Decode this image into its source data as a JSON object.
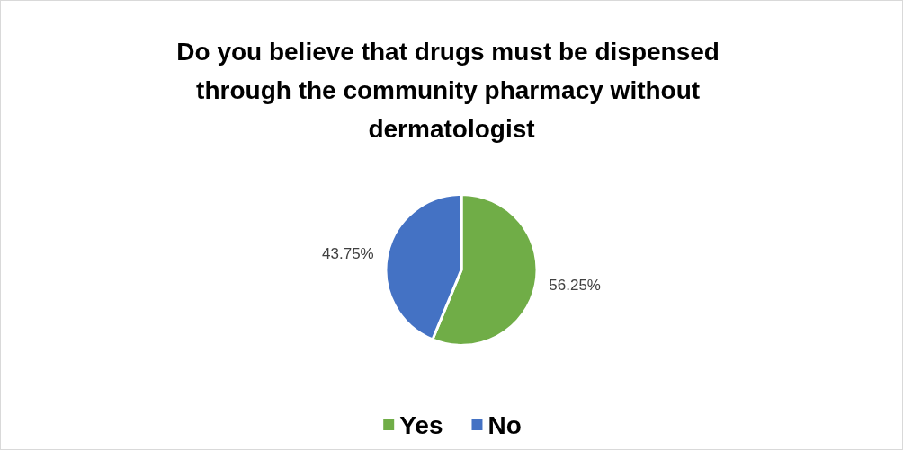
{
  "chart_data": {
    "type": "pie",
    "title": "Do you believe that drugs must be dispensed through the community pharmacy without dermatologist",
    "categories": [
      "Yes",
      "No"
    ],
    "values": [
      56.25,
      43.75
    ],
    "colors": [
      "#70ad47",
      "#4472c4"
    ],
    "value_labels": [
      "56.25%",
      "43.75%"
    ],
    "legend": "bottom"
  }
}
